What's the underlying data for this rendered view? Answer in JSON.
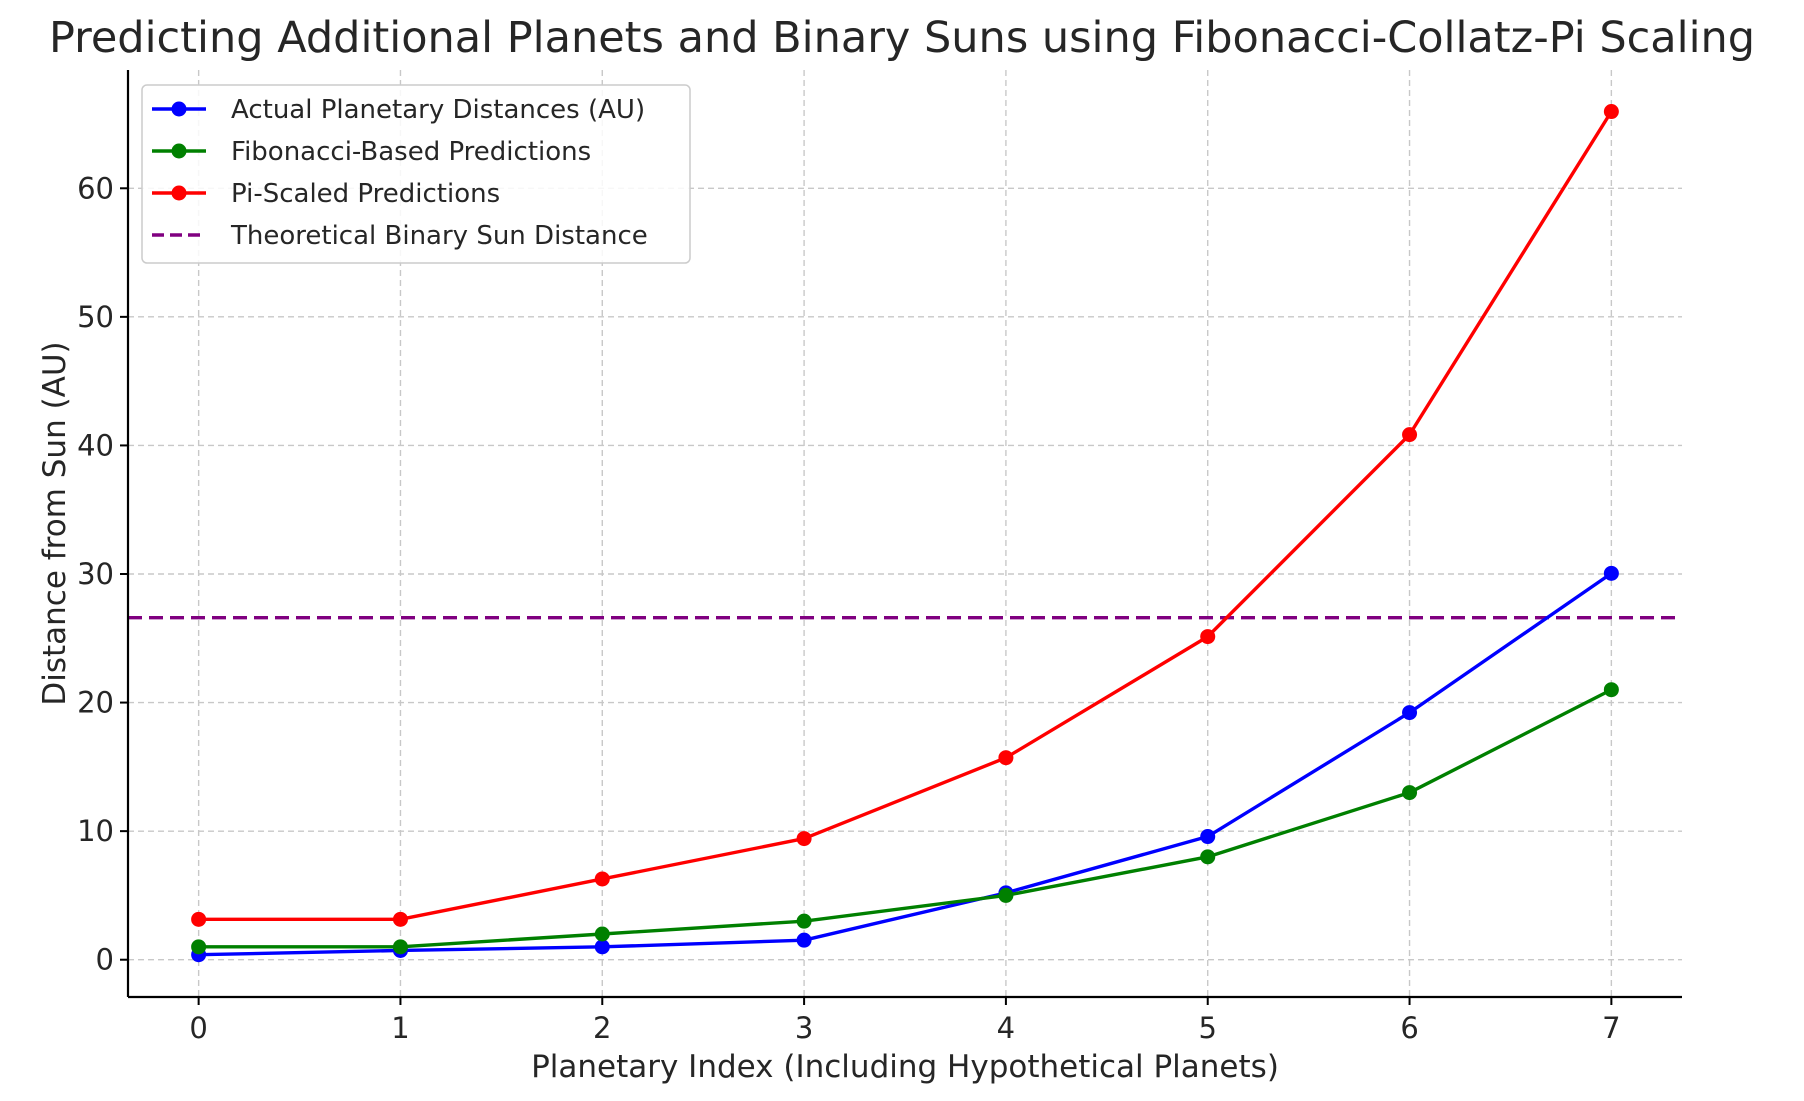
{
  "chart_data": {
    "type": "line",
    "title": "Predicting Additional Planets and Binary Suns using Fibonacci-Collatz-Pi Scaling",
    "xlabel": "Planetary Index (Including Hypothetical Planets)",
    "ylabel": "Distance from Sun (AU)",
    "x": [
      0,
      1,
      2,
      3,
      4,
      5,
      6,
      7
    ],
    "xlim": [
      -0.35,
      7.35
    ],
    "ylim": [
      -2.9,
      69.2
    ],
    "xticks": [
      0,
      1,
      2,
      3,
      4,
      5,
      6,
      7
    ],
    "yticks": [
      0,
      10,
      20,
      30,
      40,
      50,
      60
    ],
    "grid": true,
    "legend_position": "top-left",
    "series": [
      {
        "name": "Actual Planetary Distances (AU)",
        "color": "#0000ff",
        "marker": "circle",
        "values": [
          0.39,
          0.72,
          1.0,
          1.52,
          5.2,
          9.58,
          19.22,
          30.05
        ]
      },
      {
        "name": "Fibonacci-Based Predictions",
        "color": "#008000",
        "marker": "circle",
        "values": [
          1,
          1,
          2,
          3,
          5,
          8,
          13,
          21
        ]
      },
      {
        "name": "Pi-Scaled Predictions",
        "color": "#ff0000",
        "marker": "circle",
        "values": [
          3.14,
          3.14,
          6.28,
          9.42,
          15.71,
          25.13,
          40.84,
          65.97
        ]
      }
    ],
    "reference_lines": [
      {
        "name": "Theoretical Binary Sun Distance",
        "color": "#800080",
        "style": "dashed",
        "y": 26.6
      }
    ]
  }
}
